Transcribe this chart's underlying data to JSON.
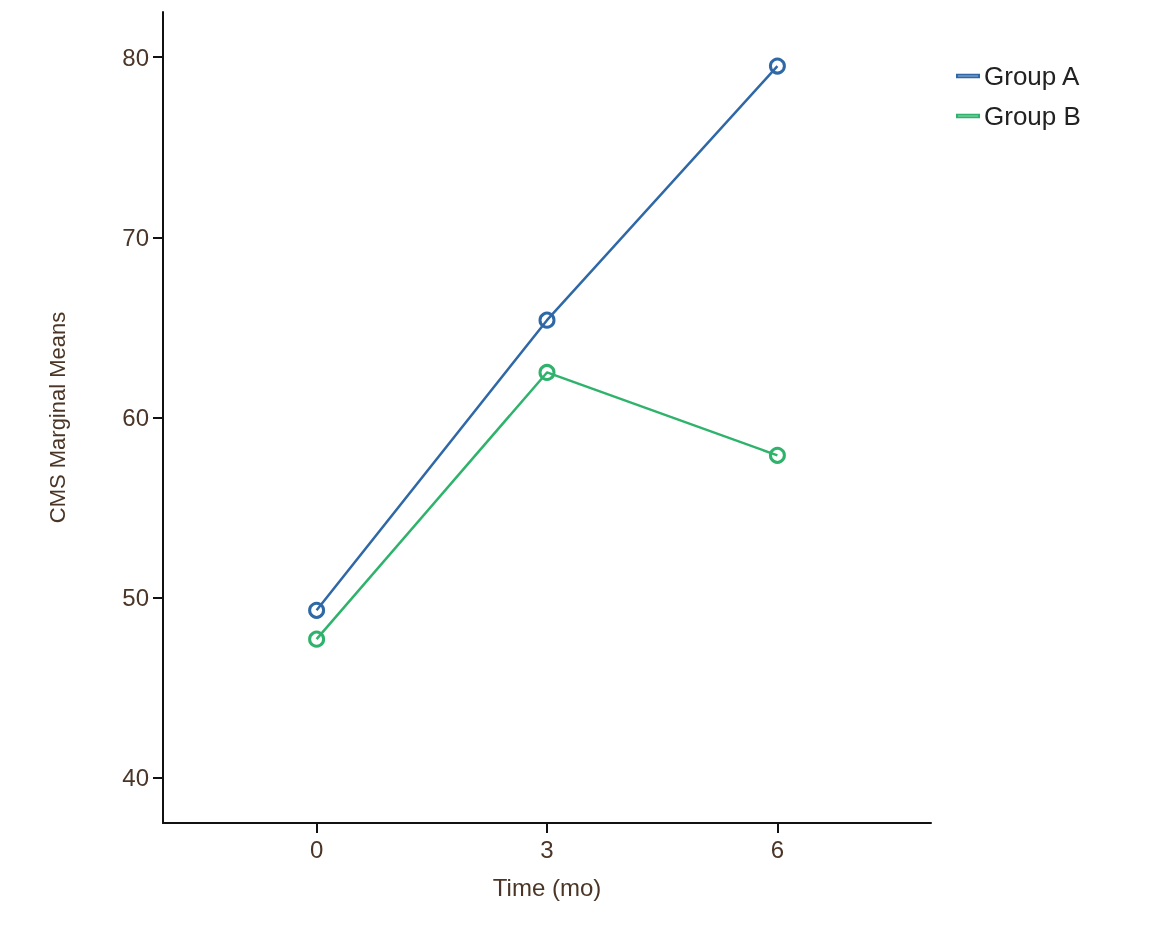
{
  "chart_data": {
    "type": "line",
    "xlabel": "Time (mo)",
    "ylabel": "CMS Marginal Means",
    "x": [
      0,
      3,
      6
    ],
    "series": [
      {
        "name": "Group A",
        "color": "#2f68a6",
        "values": [
          49.3,
          65.4,
          79.5
        ]
      },
      {
        "name": "Group B",
        "color": "#2fb36c",
        "values": [
          47.7,
          62.5,
          57.9
        ]
      }
    ],
    "xlim": [
      -2,
      8
    ],
    "xticks": [
      0,
      3,
      6
    ],
    "ylim": [
      37.5,
      82.5
    ],
    "yticks": [
      40,
      50,
      60,
      70,
      80
    ],
    "grid": false,
    "legend": "top right",
    "marker": "circle",
    "line_style": "solid"
  }
}
